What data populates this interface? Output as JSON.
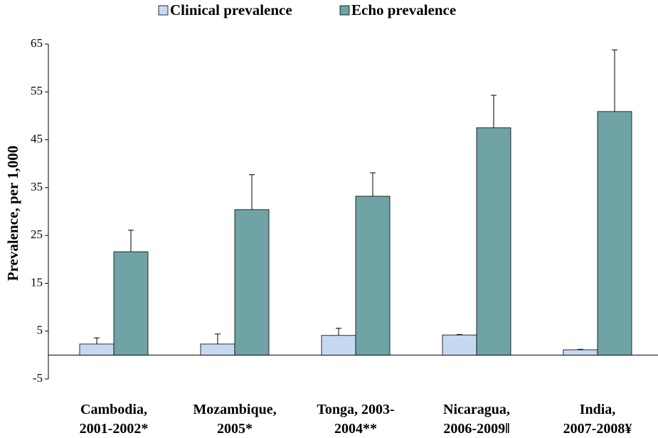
{
  "chart_data": {
    "type": "bar",
    "y_label": "Prevalence, per 1,000",
    "categories": [
      [
        "Cambodia,",
        "2001-2002*"
      ],
      [
        "Mozambique,",
        "2005*"
      ],
      [
        "Tonga, 2003-",
        "2004**"
      ],
      [
        "Nicaragua,",
        "2006-2009‖"
      ],
      [
        "India,",
        "2007-2008¥"
      ]
    ],
    "series": [
      {
        "name": "Clinical prevalence",
        "color": "#c6d9f1",
        "values": [
          2.3,
          2.3,
          4.1,
          4.2,
          1.1
        ],
        "errors": [
          1.3,
          2.1,
          1.5,
          0.1,
          0.1
        ]
      },
      {
        "name": "Echo prevalence",
        "color": "#6fa3a6",
        "values": [
          21.6,
          30.4,
          33.2,
          47.5,
          50.9
        ],
        "errors": [
          4.5,
          7.3,
          4.9,
          6.8,
          12.9
        ]
      }
    ],
    "ylim": [
      -5,
      65
    ],
    "yticks": [
      -5,
      5,
      15,
      25,
      35,
      45,
      55,
      65
    ],
    "grid": false
  }
}
